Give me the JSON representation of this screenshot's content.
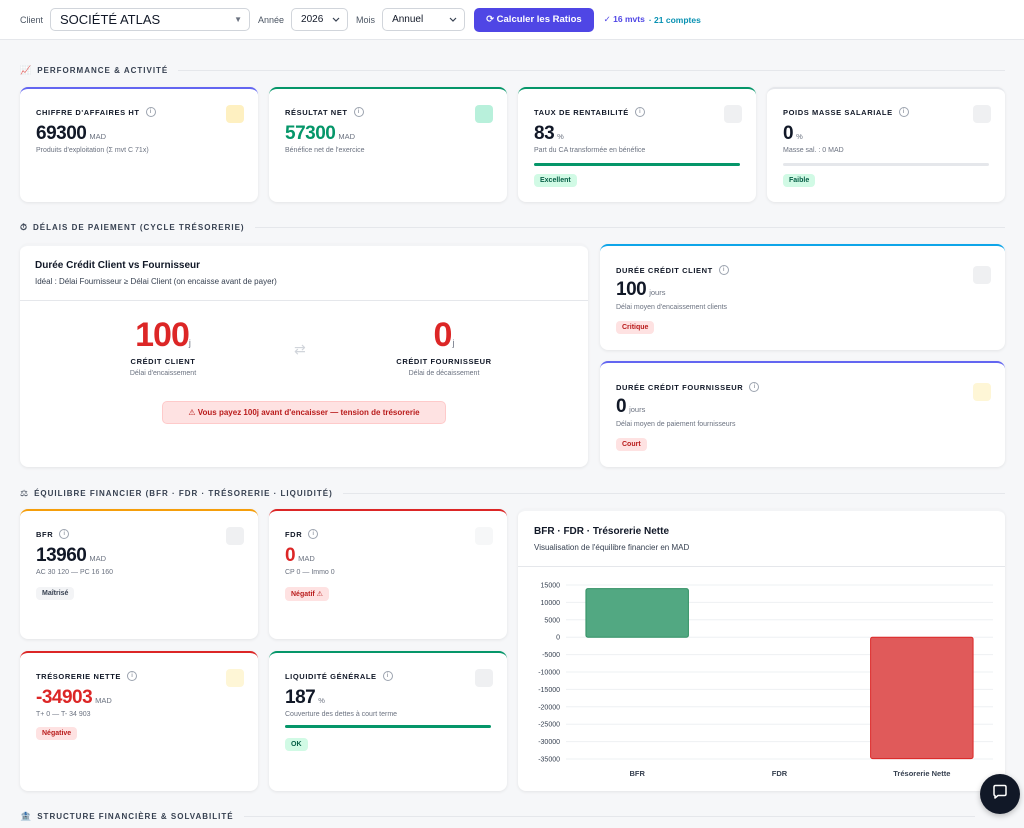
{
  "topbar": {
    "client_label": "Client",
    "client_value": "SOCIÉTÉ ATLAS",
    "annee_label": "Année",
    "annee_value": "2026",
    "mois_label": "Mois",
    "mois_value": "Annuel",
    "calc_button": "⟳ Calculer les Ratios",
    "mvts": "✓ 16 mvts",
    "comptes": "· 21 comptes"
  },
  "sections": {
    "performance": "PERFORMANCE & ACTIVITÉ",
    "delais": "DÉLAIS DE PAIEMENT (CYCLE TRÉSORERIE)",
    "equilibre": "ÉQUILIBRE FINANCIER (BFR · FDR · TRÉSORERIE · LIQUIDITÉ)",
    "structure": "STRUCTURE FINANCIÈRE & SOLVABILITÉ"
  },
  "kpis": {
    "ca": {
      "title": "CHIFFRE D'AFFAIRES HT",
      "value": "69300",
      "unit": "MAD",
      "sub": "Produits d'exploitation (Σ mvt C 71x)"
    },
    "resultat": {
      "title": "RÉSULTAT NET",
      "value": "57300",
      "unit": "MAD",
      "sub": "Bénéfice net de l'exercice"
    },
    "rentabilite": {
      "title": "TAUX DE RENTABILITÉ",
      "value": "83",
      "unit": "%",
      "sub": "Part du CA transformée en bénéfice",
      "badge": "Excellent",
      "level": 1.0
    },
    "masse": {
      "title": "POIDS MASSE SALARIALE",
      "value": "0",
      "unit": "%",
      "sub": "Masse sal. : 0 MAD",
      "badge": "Faible",
      "level": 0.0
    }
  },
  "delais": {
    "title": "Durée Crédit Client vs Fournisseur",
    "subtitle": "Idéal : Délai Fournisseur ≥ Délai Client (on encaisse avant de payer)",
    "client_value": "100",
    "client_unit": "j",
    "client_label": "CRÉDIT CLIENT",
    "client_sub": "Délai d'encaissement",
    "arrows": "⇄",
    "fourn_value": "0",
    "fourn_unit": "j",
    "fourn_label": "CRÉDIT FOURNISSEUR",
    "fourn_sub": "Délai de décaissement",
    "alert": "⚠ Vous payez 100j avant d'encaisser — tension de trésorerie",
    "card_client": {
      "title": "DURÉE CRÉDIT CLIENT",
      "value": "100",
      "unit": "jours",
      "sub": "Délai moyen d'encaissement clients",
      "badge": "Critique"
    },
    "card_fourn": {
      "title": "DURÉE CRÉDIT FOURNISSEUR",
      "value": "0",
      "unit": "jours",
      "sub": "Délai moyen de paiement fournisseurs",
      "badge": "Court"
    }
  },
  "equilibre": {
    "bfr": {
      "title": "BFR",
      "value": "13960",
      "unit": "MAD",
      "sub": "AC 30 120 — PC 16 160",
      "badge": "Maîtrisé"
    },
    "fdr": {
      "title": "FDR",
      "value": "0",
      "unit": "MAD",
      "sub": "CP 0 — Immo 0",
      "badge": "Négatif ⚠"
    },
    "tresorerie": {
      "title": "TRÉSORERIE NETTE",
      "value": "-34903",
      "unit": "MAD",
      "sub": "T+ 0 — T- 34 903",
      "badge": "Négative"
    },
    "liquidite": {
      "title": "LIQUIDITÉ GÉNÉRALE",
      "value": "187",
      "unit": "%",
      "sub": "Couverture des dettes à court terme",
      "badge": "OK",
      "level": 1.0
    }
  },
  "chart_header": {
    "title": "BFR · FDR · Trésorerie Nette",
    "subtitle": "Visualisation de l'équilibre financier en MAD"
  },
  "chart_data": {
    "type": "bar",
    "categories": [
      "BFR",
      "FDR",
      "Trésorerie Nette"
    ],
    "values": [
      13960,
      0,
      -34903
    ],
    "colors": [
      "#52a882",
      "#52a882",
      "#e05a5a"
    ],
    "ylim": [
      -35000,
      15000
    ],
    "yticks": [
      15000,
      10000,
      5000,
      0,
      -5000,
      -10000,
      -15000,
      -20000,
      -25000,
      -30000,
      -35000
    ],
    "grid": true,
    "title": "",
    "xlabel": "",
    "ylabel": ""
  },
  "icons": {
    "info": "i",
    "chat": "chat-icon"
  }
}
